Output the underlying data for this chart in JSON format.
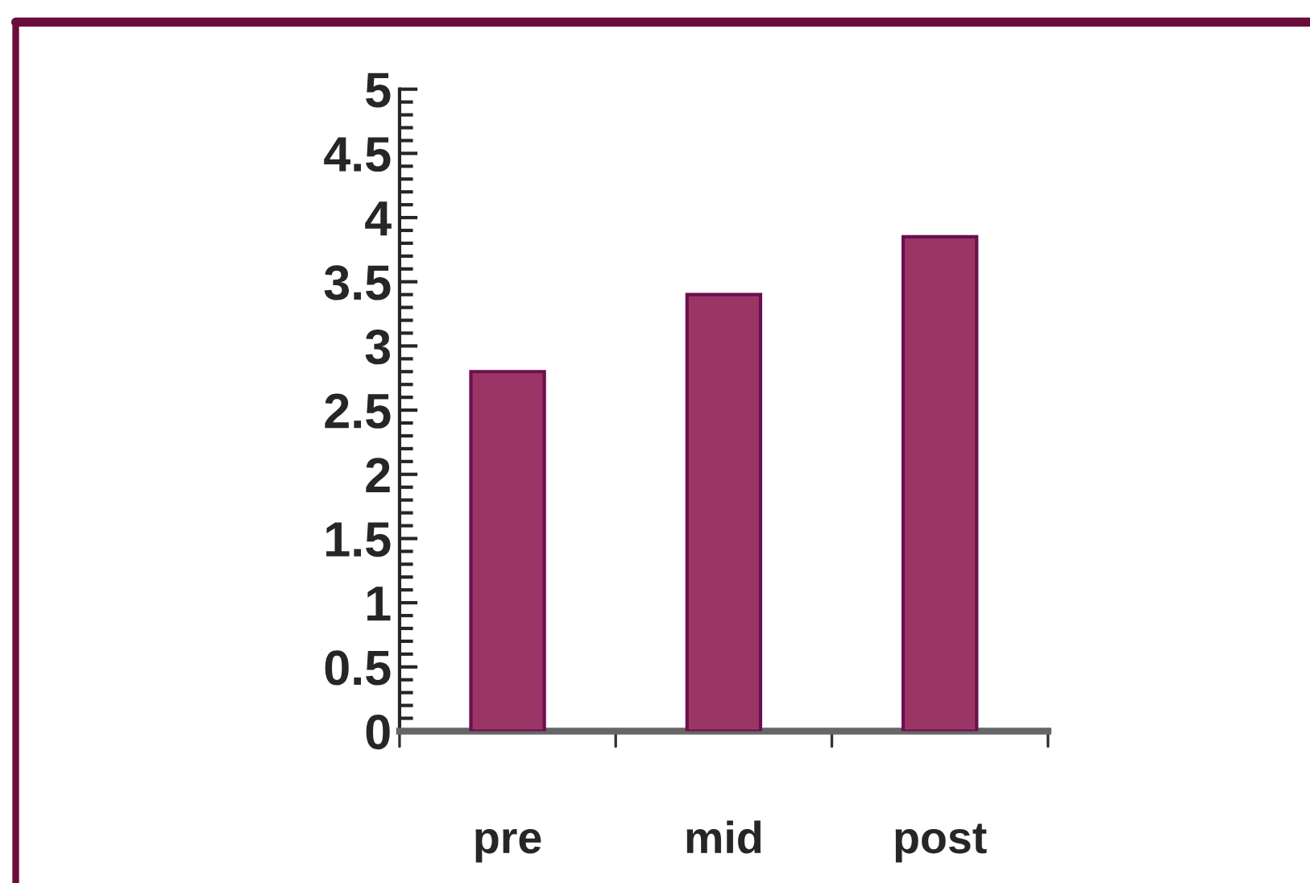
{
  "chart_data": {
    "type": "bar",
    "categories": [
      "pre",
      "mid",
      "post"
    ],
    "values": [
      2.8,
      3.4,
      3.85
    ],
    "color": "#9b3566",
    "ylim": [
      0,
      5
    ],
    "yticks": [
      0,
      0.5,
      1,
      1.5,
      2,
      2.5,
      3,
      3.5,
      4,
      4.5,
      5
    ],
    "grid": false,
    "legend": false
  }
}
